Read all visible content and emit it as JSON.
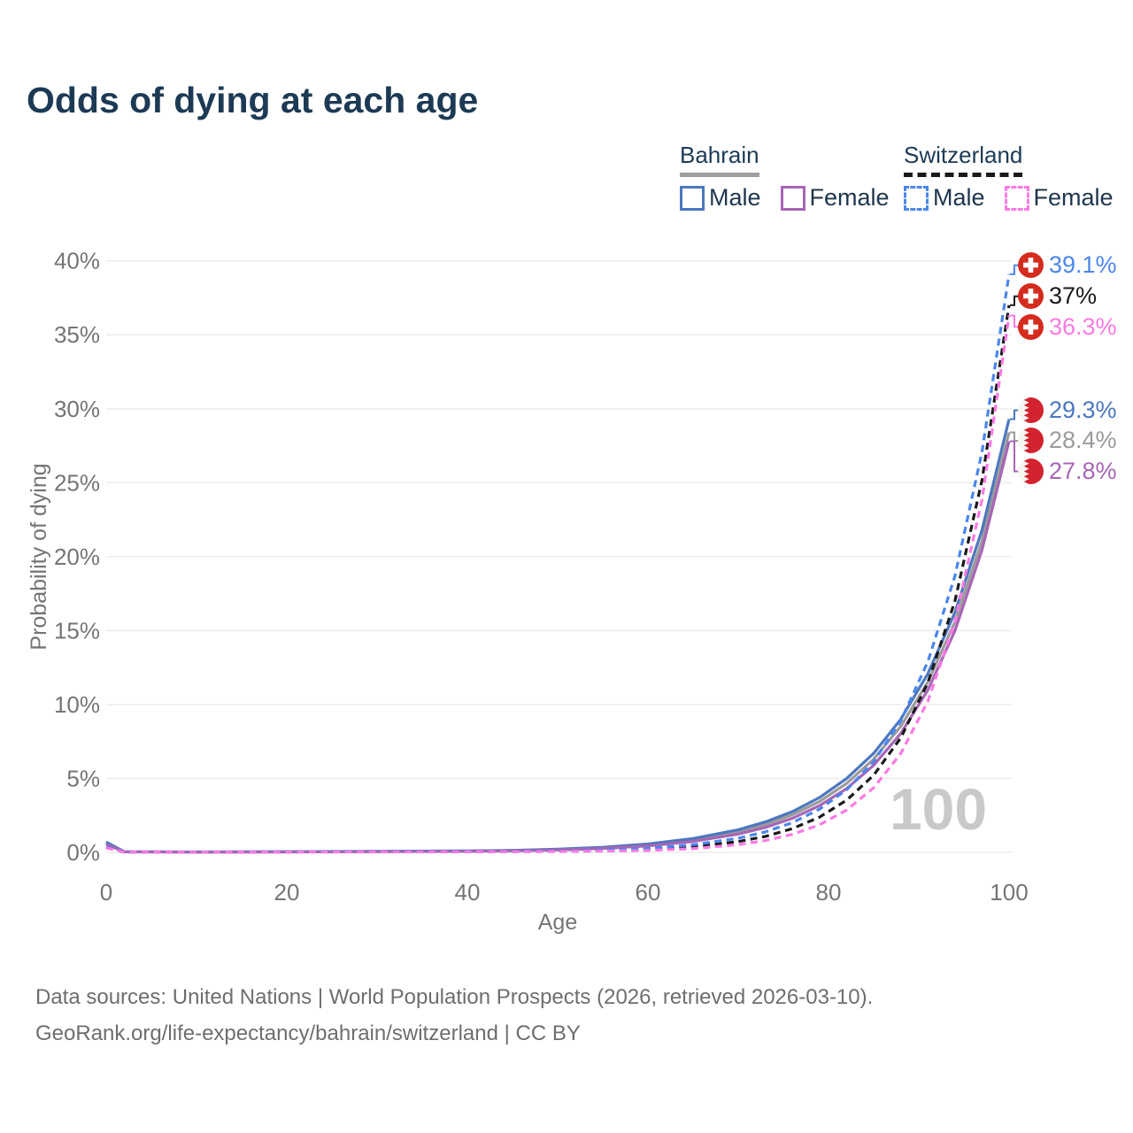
{
  "title": "Odds of dying at each age",
  "legend": {
    "groups": [
      {
        "name": "Bahrain",
        "line_style": "solid",
        "underline_color": "#9e9e9e",
        "items": [
          {
            "label": "Male",
            "color": "#4c77be"
          },
          {
            "label": "Female",
            "color": "#a765b5"
          }
        ]
      },
      {
        "name": "Switzerland",
        "line_style": "dashed",
        "underline_color": "#1a1a1a",
        "items": [
          {
            "label": "Male",
            "color": "#4c86ec"
          },
          {
            "label": "Female",
            "color": "#fb7ae4"
          }
        ]
      }
    ]
  },
  "chart_data": {
    "type": "line",
    "title": "Odds of dying at each age",
    "xlabel": "Age",
    "ylabel": "Probability of dying",
    "xlim": [
      0,
      100
    ],
    "ylim": [
      0,
      40
    ],
    "x_ticks": [
      0,
      20,
      40,
      60,
      80,
      100
    ],
    "y_ticks": [
      "0%",
      "5%",
      "10%",
      "15%",
      "20%",
      "25%",
      "30%",
      "35%",
      "40%"
    ],
    "grid": "horizontal",
    "legend_position": "top-right",
    "watermark": "100",
    "series": [
      {
        "name": "Bahrain total",
        "country": "Bahrain",
        "sex": "total",
        "color": "#9b9b9b",
        "dash": false,
        "end_value_pct": 28.4,
        "points": [
          [
            0,
            0.62
          ],
          [
            2,
            0.04
          ],
          [
            10,
            0.02
          ],
          [
            20,
            0.04
          ],
          [
            30,
            0.06
          ],
          [
            40,
            0.09
          ],
          [
            45,
            0.12
          ],
          [
            50,
            0.19
          ],
          [
            55,
            0.31
          ],
          [
            60,
            0.51
          ],
          [
            65,
            0.84
          ],
          [
            70,
            1.39
          ],
          [
            73,
            1.88
          ],
          [
            76,
            2.55
          ],
          [
            79,
            3.44
          ],
          [
            82,
            4.66
          ],
          [
            85,
            6.3
          ],
          [
            88,
            8.52
          ],
          [
            91,
            11.52
          ],
          [
            94,
            15.58
          ],
          [
            97,
            21.07
          ],
          [
            100,
            28.4
          ]
        ]
      },
      {
        "name": "Bahrain male",
        "country": "Bahrain",
        "sex": "male",
        "color": "#4c77be",
        "dash": false,
        "end_value_pct": 29.3,
        "points": [
          [
            0,
            0.7
          ],
          [
            2,
            0.05
          ],
          [
            10,
            0.03
          ],
          [
            20,
            0.05
          ],
          [
            30,
            0.07
          ],
          [
            40,
            0.1
          ],
          [
            45,
            0.14
          ],
          [
            50,
            0.22
          ],
          [
            55,
            0.35
          ],
          [
            60,
            0.57
          ],
          [
            65,
            0.94
          ],
          [
            70,
            1.53
          ],
          [
            73,
            2.06
          ],
          [
            76,
            2.76
          ],
          [
            79,
            3.71
          ],
          [
            82,
            4.99
          ],
          [
            85,
            6.7
          ],
          [
            88,
            9.0
          ],
          [
            91,
            12.08
          ],
          [
            94,
            16.22
          ],
          [
            97,
            21.79
          ],
          [
            100,
            29.3
          ]
        ]
      },
      {
        "name": "Bahrain female",
        "country": "Bahrain",
        "sex": "female",
        "color": "#a765b5",
        "dash": false,
        "end_value_pct": 27.8,
        "points": [
          [
            0,
            0.55
          ],
          [
            2,
            0.04
          ],
          [
            10,
            0.02
          ],
          [
            20,
            0.03
          ],
          [
            30,
            0.05
          ],
          [
            40,
            0.08
          ],
          [
            45,
            0.11
          ],
          [
            50,
            0.16
          ],
          [
            55,
            0.27
          ],
          [
            60,
            0.44
          ],
          [
            65,
            0.74
          ],
          [
            70,
            1.24
          ],
          [
            73,
            1.69
          ],
          [
            76,
            2.31
          ],
          [
            79,
            3.16
          ],
          [
            82,
            4.31
          ],
          [
            85,
            5.89
          ],
          [
            88,
            8.04
          ],
          [
            91,
            10.97
          ],
          [
            94,
            14.98
          ],
          [
            97,
            20.45
          ],
          [
            100,
            27.8
          ]
        ]
      },
      {
        "name": "Switzerland total",
        "country": "Switzerland",
        "sex": "total",
        "color": "#1a1a1a",
        "dash": true,
        "end_value_pct": 37.0,
        "points": [
          [
            0,
            0.33
          ],
          [
            2,
            0.02
          ],
          [
            10,
            0.01
          ],
          [
            20,
            0.03
          ],
          [
            30,
            0.04
          ],
          [
            40,
            0.05
          ],
          [
            45,
            0.06
          ],
          [
            50,
            0.07
          ],
          [
            55,
            0.12
          ],
          [
            60,
            0.2
          ],
          [
            65,
            0.38
          ],
          [
            70,
            0.73
          ],
          [
            73,
            1.08
          ],
          [
            76,
            1.61
          ],
          [
            79,
            2.38
          ],
          [
            82,
            3.53
          ],
          [
            85,
            5.22
          ],
          [
            88,
            7.74
          ],
          [
            91,
            11.47
          ],
          [
            94,
            16.99
          ],
          [
            97,
            25.17
          ],
          [
            100,
            37.0
          ]
        ]
      },
      {
        "name": "Switzerland male",
        "country": "Switzerland",
        "sex": "male",
        "color": "#4c86ec",
        "dash": true,
        "end_value_pct": 39.1,
        "points": [
          [
            0,
            0.36
          ],
          [
            2,
            0.02
          ],
          [
            10,
            0.01
          ],
          [
            20,
            0.04
          ],
          [
            30,
            0.05
          ],
          [
            40,
            0.06
          ],
          [
            45,
            0.07
          ],
          [
            50,
            0.08
          ],
          [
            55,
            0.15
          ],
          [
            60,
            0.28
          ],
          [
            65,
            0.52
          ],
          [
            70,
            0.96
          ],
          [
            73,
            1.39
          ],
          [
            76,
            2.01
          ],
          [
            79,
            2.92
          ],
          [
            82,
            4.23
          ],
          [
            85,
            6.13
          ],
          [
            88,
            8.89
          ],
          [
            91,
            12.89
          ],
          [
            94,
            18.68
          ],
          [
            97,
            27.08
          ],
          [
            100,
            39.1
          ]
        ]
      },
      {
        "name": "Switzerland female",
        "country": "Switzerland",
        "sex": "female",
        "color": "#fb7ae4",
        "dash": true,
        "end_value_pct": 36.3,
        "points": [
          [
            0,
            0.3
          ],
          [
            2,
            0.02
          ],
          [
            10,
            0.01
          ],
          [
            20,
            0.02
          ],
          [
            30,
            0.03
          ],
          [
            40,
            0.04
          ],
          [
            45,
            0.05
          ],
          [
            50,
            0.06
          ],
          [
            55,
            0.09
          ],
          [
            60,
            0.13
          ],
          [
            65,
            0.26
          ],
          [
            70,
            0.52
          ],
          [
            73,
            0.8
          ],
          [
            76,
            1.22
          ],
          [
            79,
            1.87
          ],
          [
            82,
            2.86
          ],
          [
            85,
            4.37
          ],
          [
            88,
            6.68
          ],
          [
            91,
            10.21
          ],
          [
            94,
            15.6
          ],
          [
            97,
            23.85
          ],
          [
            100,
            36.3
          ]
        ]
      }
    ]
  },
  "end_labels": [
    {
      "text": "39.1%",
      "value": 39.1,
      "flag": "switzerland",
      "color": "#4c86ec"
    },
    {
      "text": "37%",
      "value": 37.0,
      "flag": "switzerland",
      "color": "#1a1a1a"
    },
    {
      "text": "36.3%",
      "value": 36.3,
      "flag": "switzerland",
      "color": "#fb7ae4"
    },
    {
      "text": "29.3%",
      "value": 29.3,
      "flag": "bahrain",
      "color": "#4c77be"
    },
    {
      "text": "28.4%",
      "value": 28.4,
      "flag": "bahrain",
      "color": "#9b9b9b"
    },
    {
      "text": "27.8%",
      "value": 27.8,
      "flag": "bahrain",
      "color": "#a765b5"
    }
  ],
  "colors": {
    "title_text": "#1d3a55",
    "axis_text": "#757575",
    "gridline": "#ebebeb",
    "watermark": "#c9c9c9",
    "footer_text": "#6e6e6e",
    "swiss_flag_red": "#d52b1e",
    "bahrain_flag_red": "#d2232e"
  },
  "footer": {
    "line1": "Data sources: United Nations | World Population Prospects (2026, retrieved 2026-03-10).",
    "line2": "GeoRank.org/life-expectancy/bahrain/switzerland | CC BY"
  }
}
